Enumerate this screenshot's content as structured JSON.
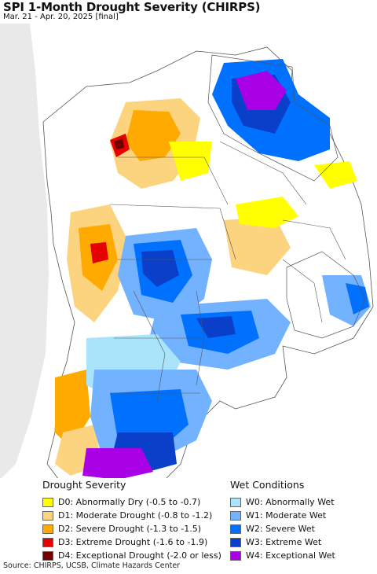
{
  "header": {
    "title": "SPI 1-Month Drought Severity (CHIRPS)",
    "subtitle": "Mar. 21 - Apr. 20, 2025 [final]"
  },
  "legend": {
    "drought": {
      "heading": "Drought Severity",
      "items": [
        {
          "label": "D0: Abnormally Dry (-0.5 to -0.7)",
          "color": "#ffff00"
        },
        {
          "label": "D1: Moderate Drought (-0.8 to -1.2)",
          "color": "#fcd37f"
        },
        {
          "label": "D2: Severe Drought (-1.3 to -1.5)",
          "color": "#ffaa00"
        },
        {
          "label": "D3: Extreme Drought (-1.6 to -1.9)",
          "color": "#e60000"
        },
        {
          "label": "D4: Exceptional Drought (-2.0 or less)",
          "color": "#730000"
        }
      ]
    },
    "wet": {
      "heading": "Wet Conditions",
      "items": [
        {
          "label": "W0: Abnormally Wet",
          "color": "#aae4fa"
        },
        {
          "label": "W1: Moderate Wet",
          "color": "#73b2ff"
        },
        {
          "label": "W2: Severe Wet",
          "color": "#0070ff"
        },
        {
          "label": "W3: Extreme Wet",
          "color": "#0a3fc9"
        },
        {
          "label": "W4: Exceptional Wet",
          "color": "#a900e6"
        }
      ]
    }
  },
  "footer": {
    "source": "Source: CHIRPS, UCSB, Climate Hazards Center"
  }
}
